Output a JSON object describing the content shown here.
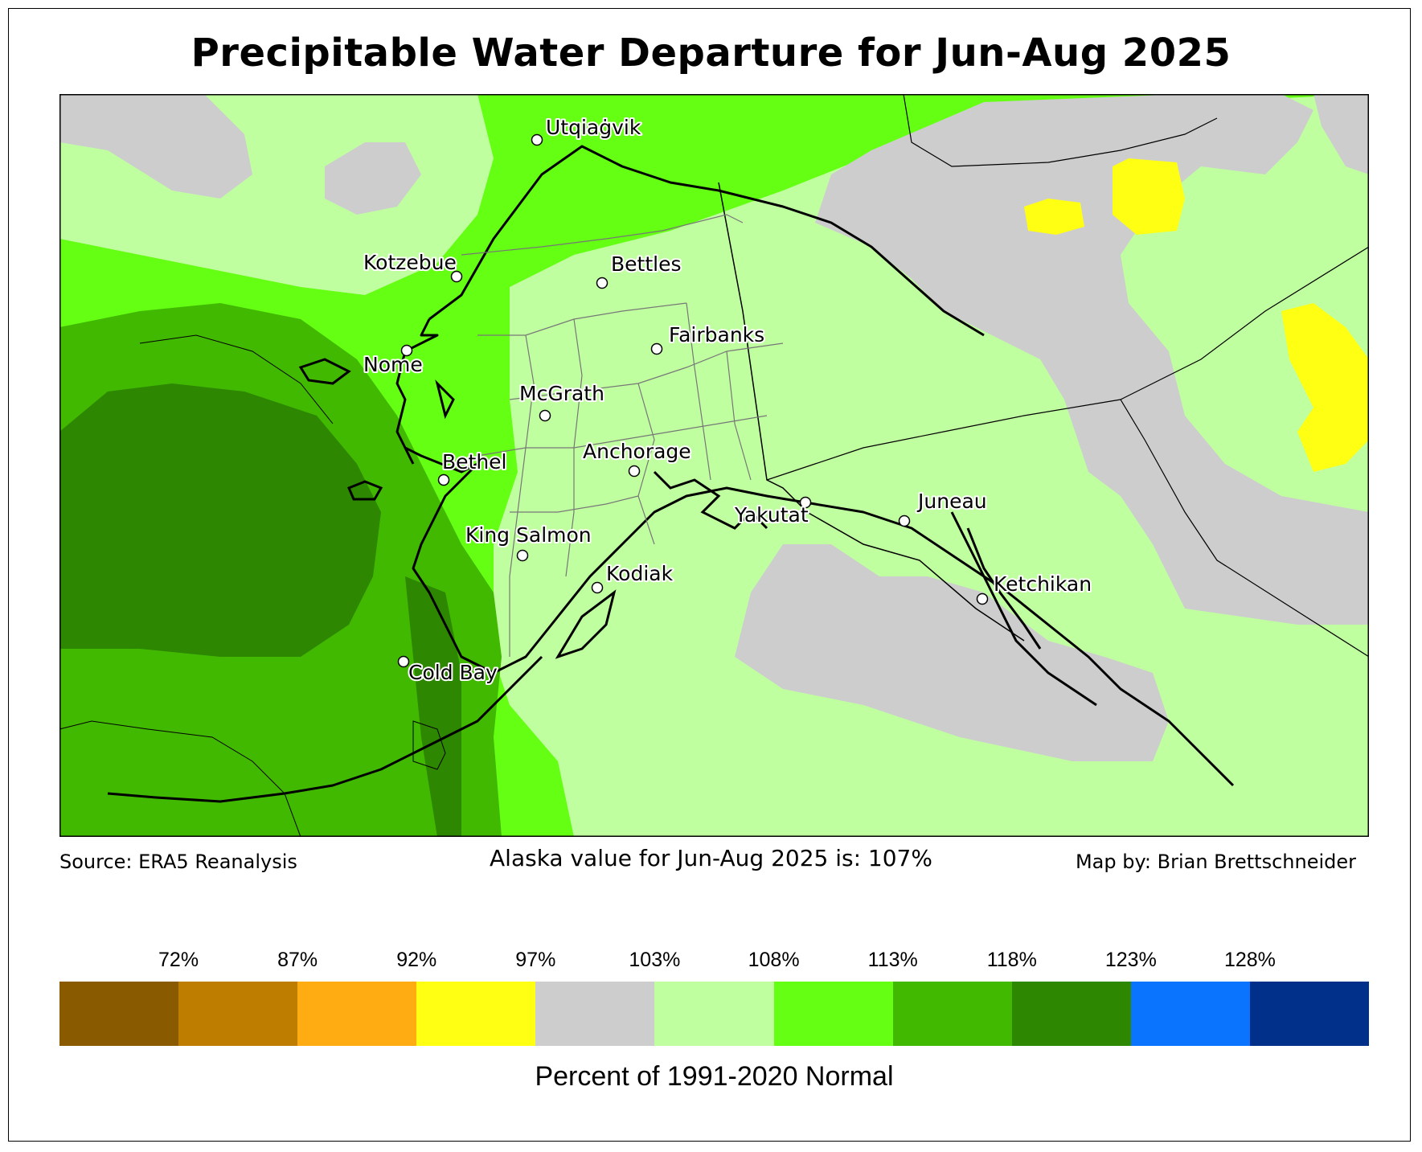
{
  "title": "Precipitable Water Departure for Jun-Aug 2025",
  "footer": {
    "source": "Source: ERA5 Reanalysis",
    "statewide": "Alaska value for Jun-Aug 2025 is: 107%",
    "credit": "Map by: Brian Brettschneider"
  },
  "legend": {
    "label": "Percent of 1991-2020 Normal",
    "ticks": [
      "72%",
      "87%",
      "92%",
      "97%",
      "103%",
      "108%",
      "113%",
      "118%",
      "123%",
      "128%"
    ],
    "colors": [
      "#8a5a00",
      "#bf7d00",
      "#ffac12",
      "#ffff14",
      "#cdcdcd",
      "#c0ffa0",
      "#64ff12",
      "#41b900",
      "#2d8700",
      "#0a74ff",
      "#00308a"
    ]
  },
  "map": {
    "region": "Alaska",
    "cities": [
      "Utqiaġvik",
      "Kotzebue",
      "Bettles",
      "Nome",
      "Fairbanks",
      "McGrath",
      "Bethel",
      "Anchorage",
      "Yakutat",
      "Juneau",
      "King Salmon",
      "Kodiak",
      "Ketchikan",
      "Cold Bay"
    ]
  }
}
